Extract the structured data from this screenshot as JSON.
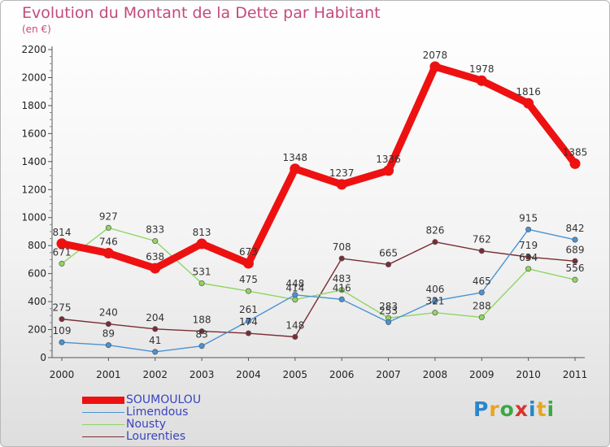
{
  "header": {
    "title": "Evolution du Montant de la Dette par Habitant",
    "subtitle": "(en €)"
  },
  "logo": {
    "letters": [
      "P",
      "r",
      "o",
      "x",
      "i",
      "t",
      "i"
    ],
    "colors": [
      "#2a86c9",
      "#e8a51f",
      "#3aa845",
      "#d9332e",
      "#2a86c9",
      "#e8a51f",
      "#3aa845"
    ]
  },
  "chart_data": {
    "type": "line",
    "categories": [
      "2000",
      "2001",
      "2002",
      "2003",
      "2004",
      "2005",
      "2006",
      "2007",
      "2008",
      "2009",
      "2010",
      "2011"
    ],
    "y_ticks": [
      "0",
      "200",
      "400",
      "600",
      "800",
      "1000",
      "1200",
      "1400",
      "1600",
      "1800",
      "2000",
      "2200"
    ],
    "ylim": [
      0,
      2200
    ],
    "grid": false,
    "legend_position": "bottom-left",
    "series": [
      {
        "name": "SOUMOULOU",
        "color": "#ee1111",
        "values": [
          814,
          746,
          638,
          813,
          673,
          1348,
          1237,
          1336,
          2078,
          1978,
          1816,
          1385
        ]
      },
      {
        "name": "Limendous",
        "color": "#4a92d4",
        "values": [
          109,
          89,
          41,
          83,
          261,
          448,
          416,
          253,
          406,
          465,
          915,
          842
        ]
      },
      {
        "name": "Nousty",
        "color": "#8fd660",
        "values": [
          671,
          927,
          833,
          531,
          475,
          414,
          483,
          283,
          321,
          288,
          634,
          556
        ]
      },
      {
        "name": "Lourenties",
        "color": "#7a2d33",
        "values": [
          275,
          240,
          204,
          188,
          174,
          148,
          708,
          665,
          826,
          762,
          719,
          689
        ]
      }
    ]
  }
}
